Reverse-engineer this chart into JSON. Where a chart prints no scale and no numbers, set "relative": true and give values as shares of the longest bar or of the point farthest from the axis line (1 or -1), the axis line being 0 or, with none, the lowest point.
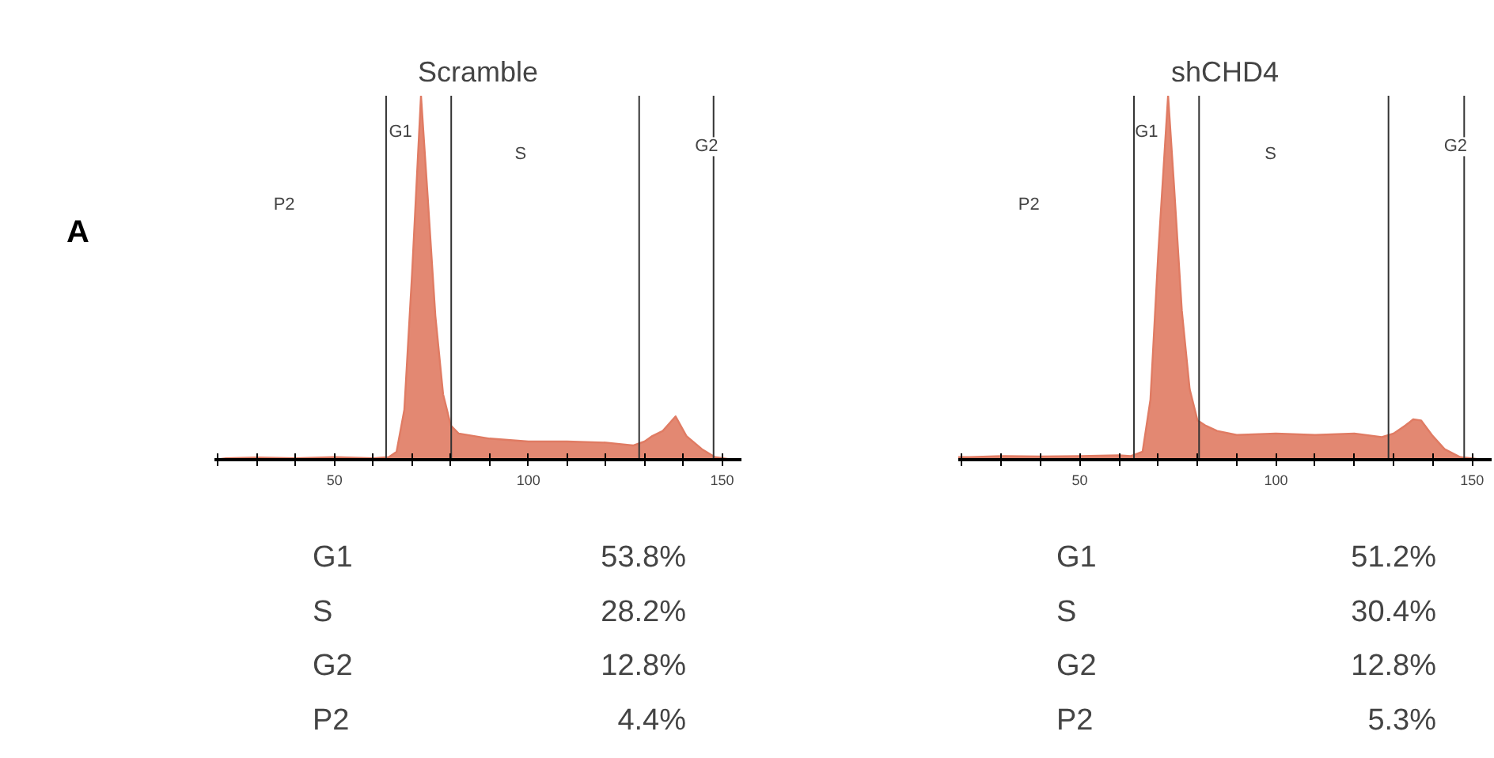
{
  "chart_data": [
    {
      "type": "area",
      "title": "Scramble",
      "relative": true,
      "color": "#e07b63",
      "tick_labels": "x",
      "xlim": [
        19,
        155
      ],
      "xticks": [
        {
          "value": 20,
          "label": null
        },
        {
          "value": 30,
          "label": null
        },
        {
          "value": 40,
          "label": null
        },
        50,
        {
          "value": 60,
          "label": null
        },
        {
          "value": 70,
          "label": null
        },
        {
          "value": 80,
          "label": null
        },
        {
          "value": 90,
          "label": null
        },
        100,
        {
          "value": 110,
          "label": null
        },
        {
          "value": 120,
          "label": null
        },
        {
          "value": 130,
          "label": null
        },
        {
          "value": 140,
          "label": null
        },
        150
      ],
      "x": [
        19,
        22,
        30,
        40,
        50,
        60,
        64,
        66,
        68,
        70,
        72.3,
        74,
        76,
        78,
        80,
        82,
        90,
        100,
        110,
        120,
        127,
        130,
        132,
        134.7,
        138,
        140.8,
        144.8,
        148.2,
        152,
        155
      ],
      "values": [
        0,
        0.004,
        0.006,
        0.004,
        0.007,
        0.004,
        0.007,
        0.022,
        0.137,
        0.511,
        1,
        0.727,
        0.396,
        0.18,
        0.094,
        0.072,
        0.058,
        0.05,
        0.05,
        0.047,
        0.039,
        0.05,
        0.065,
        0.079,
        0.119,
        0.065,
        0.029,
        0.007,
        0.001,
        0
      ],
      "ref_lines": [
        {
          "axis": "x",
          "value": 63.3,
          "color": "#333333"
        },
        {
          "axis": "x",
          "value": 80.1,
          "color": "#333333"
        },
        {
          "axis": "x",
          "value": 128.6,
          "color": "#333333"
        },
        {
          "axis": "x",
          "value": 147.8,
          "color": "#333333"
        }
      ],
      "annotations": [
        "A",
        {
          "text": "P2",
          "x": 37,
          "y": 0.7
        },
        {
          "text": "G1",
          "x": 67,
          "y": 0.9
        },
        {
          "text": "S",
          "x": 98,
          "y": 0.84
        },
        {
          "text": "G2",
          "x": 146,
          "y": 0.86
        },
        "G1 53.8%",
        "S 28.2%",
        "G2 12.8%",
        "P2 4.4%"
      ]
    },
    {
      "type": "area",
      "title": "shCHD4",
      "relative": true,
      "color": "#e07b63",
      "tick_labels": "x",
      "xlim": [
        19,
        155
      ],
      "xticks": [
        {
          "value": 20,
          "label": null
        },
        {
          "value": 30,
          "label": null
        },
        {
          "value": 40,
          "label": null
        },
        50,
        {
          "value": 60,
          "label": null
        },
        {
          "value": 70,
          "label": null
        },
        {
          "value": 80,
          "label": null
        },
        {
          "value": 90,
          "label": null
        },
        100,
        {
          "value": 110,
          "label": null
        },
        {
          "value": 120,
          "label": null
        },
        {
          "value": 130,
          "label": null
        },
        {
          "value": 140,
          "label": null
        },
        150
      ],
      "x": [
        19,
        22,
        30,
        40,
        50,
        60,
        63,
        66,
        68,
        70,
        72.5,
        74,
        76,
        78,
        80,
        82,
        85,
        90,
        100,
        110,
        120,
        127,
        130,
        133,
        135,
        137,
        140,
        143,
        147,
        152,
        155
      ],
      "values": [
        0.007,
        0.007,
        0.01,
        0.009,
        0.01,
        0.012,
        0.01,
        0.022,
        0.165,
        0.568,
        1,
        0.755,
        0.41,
        0.194,
        0.108,
        0.094,
        0.079,
        0.068,
        0.072,
        0.068,
        0.072,
        0.062,
        0.072,
        0.094,
        0.111,
        0.108,
        0.065,
        0.029,
        0.007,
        0.001,
        0
      ],
      "ref_lines": [
        {
          "axis": "x",
          "value": 63.8,
          "color": "#333333"
        },
        {
          "axis": "x",
          "value": 80.4,
          "color": "#333333"
        },
        {
          "axis": "x",
          "value": 128.7,
          "color": "#333333"
        },
        {
          "axis": "x",
          "value": 148,
          "color": "#333333"
        }
      ],
      "annotations": [
        {
          "text": "P2",
          "x": 37,
          "y": 0.7
        },
        {
          "text": "G1",
          "x": 67,
          "y": 0.9
        },
        {
          "text": "S",
          "x": 98.6,
          "y": 0.84
        },
        {
          "text": "G2",
          "x": 145.8,
          "y": 0.86
        },
        "G1 51.2%",
        "S 30.4%",
        "G2 12.8%",
        "P2 5.3%"
      ]
    }
  ]
}
